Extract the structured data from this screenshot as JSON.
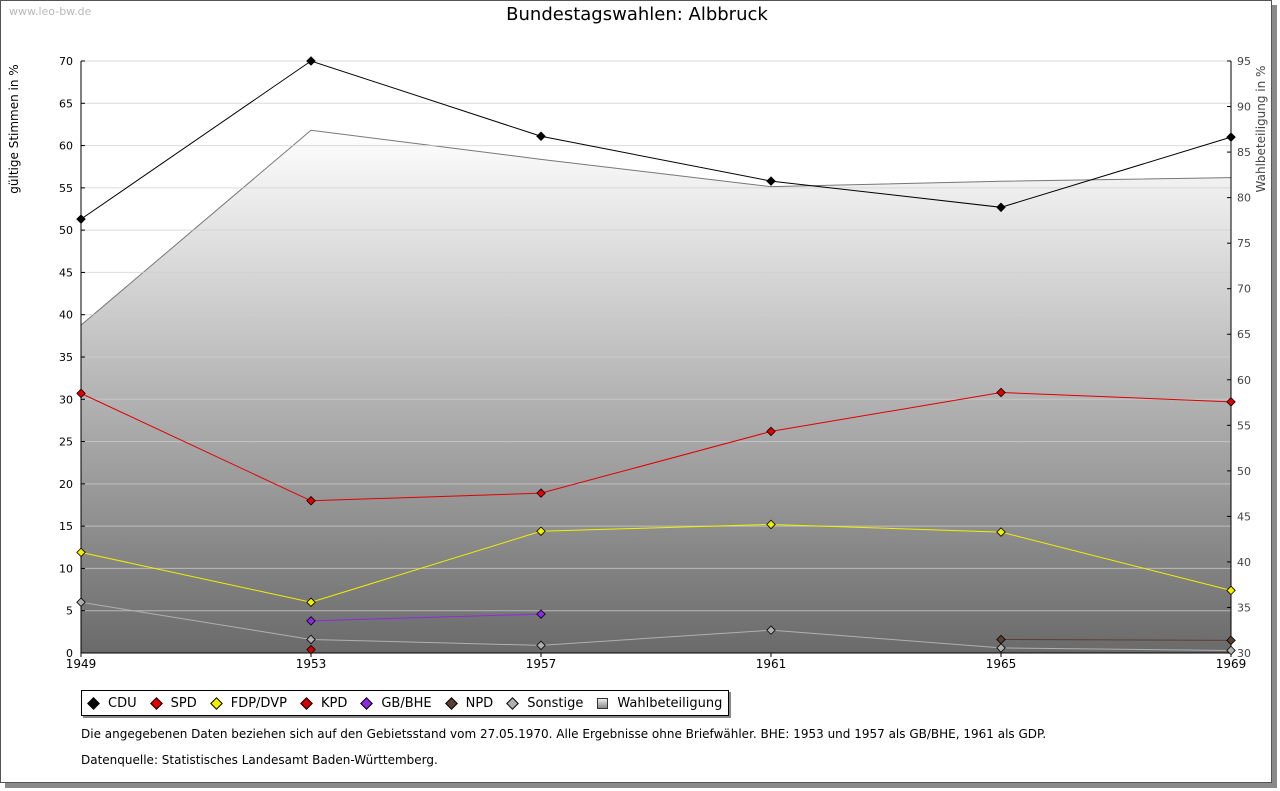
{
  "watermark": "www.leo-bw.de",
  "chart_data": {
    "type": "line",
    "title": "Bundestagswahlen: Albbruck",
    "ylabel_left": "gültige Stimmen in %",
    "ylabel_right": "Wahlbeteiligung in %",
    "x": [
      "1949",
      "1953",
      "1957",
      "1961",
      "1965",
      "1969"
    ],
    "ylim_left": [
      0,
      70
    ],
    "yticks_left": [
      0,
      5,
      10,
      15,
      20,
      25,
      30,
      35,
      40,
      45,
      50,
      55,
      60,
      65,
      70
    ],
    "ylim_right": [
      30,
      95
    ],
    "yticks_right": [
      30,
      35,
      40,
      45,
      50,
      55,
      60,
      65,
      70,
      75,
      80,
      85,
      90,
      95
    ],
    "grid": true,
    "legend_position": "bottom",
    "series": [
      {
        "name": "CDU",
        "color": "#000000",
        "values": [
          51.3,
          70.0,
          61.1,
          55.8,
          52.7,
          61.0
        ]
      },
      {
        "name": "SPD",
        "color": "#e00000",
        "values": [
          30.7,
          18.0,
          18.9,
          26.2,
          30.8,
          29.7
        ]
      },
      {
        "name": "FDP/DVP",
        "color": "#f0f000",
        "values": [
          11.9,
          6.0,
          14.4,
          15.2,
          14.3,
          7.4
        ]
      },
      {
        "name": "KPD",
        "color": "#d00000",
        "values": [
          null,
          0.4,
          null,
          null,
          null,
          null
        ]
      },
      {
        "name": "GB/BHE",
        "color": "#8a2be2",
        "values": [
          null,
          3.8,
          4.6,
          null,
          null,
          null
        ]
      },
      {
        "name": "NPD",
        "color": "#5a4030",
        "values": [
          null,
          null,
          null,
          null,
          1.6,
          1.5
        ]
      },
      {
        "name": "Sonstige",
        "color": "#b0b0b0",
        "values": [
          6.0,
          1.6,
          0.9,
          2.7,
          0.6,
          0.3
        ]
      }
    ],
    "area_series": {
      "name": "Wahlbeteiligung",
      "axis": "right",
      "values": [
        66.0,
        87.4,
        84.2,
        81.2,
        81.8,
        82.2
      ]
    }
  },
  "notes": {
    "line1": "Die angegebenen Daten beziehen sich auf den Gebietsstand vom 27.05.1970. Alle Ergebnisse ohne Briefwähler. BHE: 1953 und 1957 als GB/BHE, 1961 als GDP.",
    "line2": "Datenquelle: Statistisches Landesamt Baden-Württemberg."
  }
}
